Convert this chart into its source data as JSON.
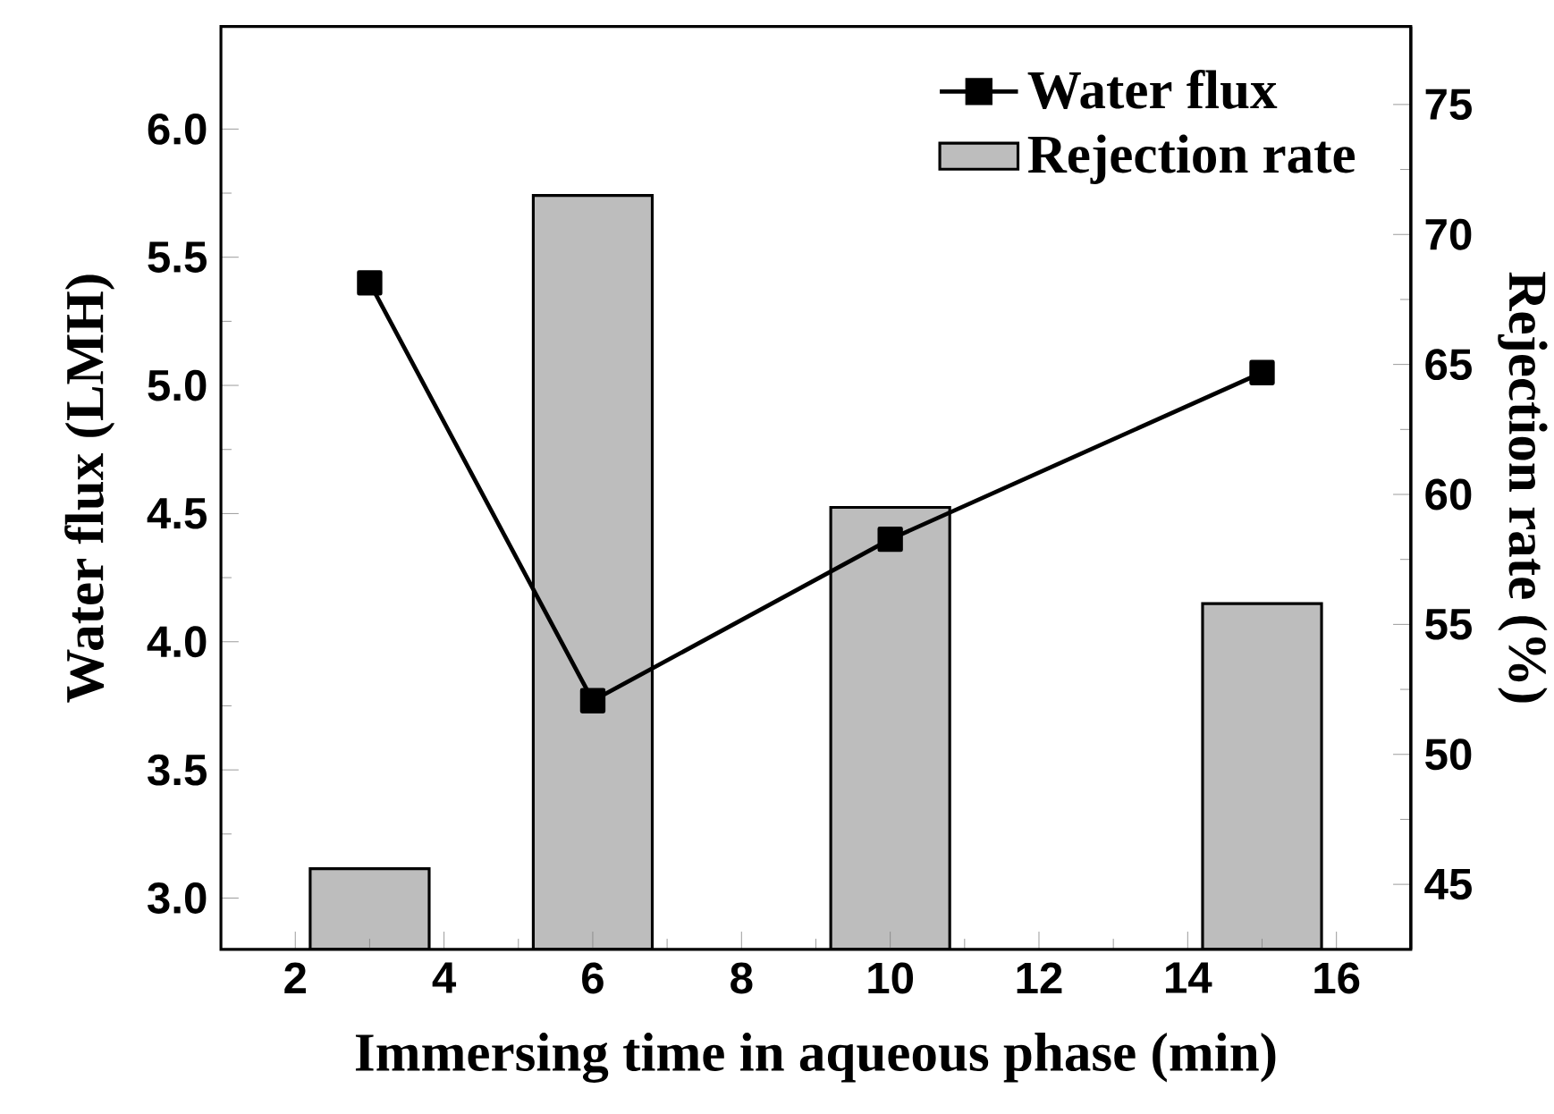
{
  "chart_data": {
    "type": "bar",
    "xlabel": "Immersing time in aqueous phase (min)",
    "ylabel": "Water flux (LMH)",
    "y2label": "Rejection rate (%)",
    "xlim": [
      1,
      17
    ],
    "xticks": [
      2,
      4,
      6,
      8,
      10,
      12,
      14,
      16
    ],
    "ylim": [
      2.8,
      6.4
    ],
    "yticks": [
      {
        "value": 3,
        "label": "3.0"
      },
      {
        "value": 3.5,
        "label": "3.5"
      },
      {
        "value": 4,
        "label": "4.0"
      },
      {
        "value": 4.5,
        "label": "4.5"
      },
      {
        "value": 5,
        "label": "5.0"
      },
      {
        "value": 5.5,
        "label": "5.5"
      },
      {
        "value": 6,
        "label": "6.0"
      }
    ],
    "y2lim": [
      42.5,
      78
    ],
    "y2ticks": [
      45,
      50,
      55,
      60,
      65,
      70,
      75
    ],
    "legend": "top right",
    "marker": "square",
    "series": [
      {
        "name": "Water flux",
        "type": "line",
        "color": "#000000",
        "x": [
          3,
          6,
          10,
          15
        ],
        "values": [
          5.4,
          3.77,
          4.4,
          5.05
        ]
      },
      {
        "name": "Rejection rate",
        "axis": "y2",
        "color": "#bdbdbd",
        "x": [
          3,
          6,
          10,
          15
        ],
        "values": [
          45.6,
          71.5,
          59.5,
          55.8
        ]
      }
    ]
  }
}
